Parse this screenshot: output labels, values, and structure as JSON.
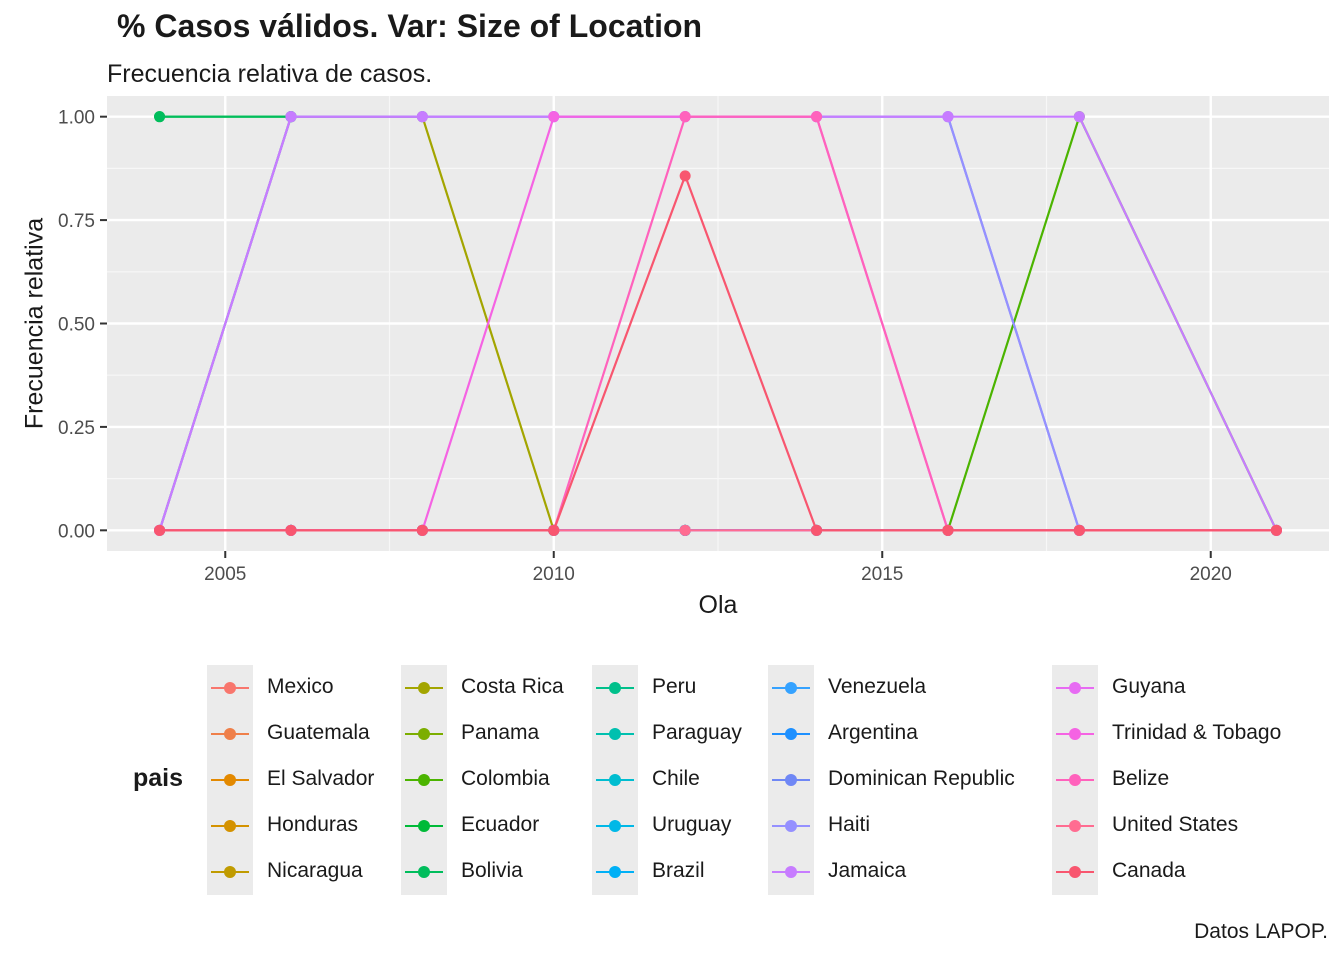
{
  "title": "% Casos válidos. Var: Size of Location",
  "subtitle": "Frecuencia relativa de casos.",
  "caption": "Datos LAPOP.",
  "chart_data": {
    "type": "line",
    "xlabel": "Ola",
    "ylabel": "Frecuencia relativa",
    "xlim": [
      2003.2,
      2021.8
    ],
    "ylim": [
      -0.05,
      1.05
    ],
    "x_ticks": [
      "2005",
      "2010",
      "2015",
      "2020"
    ],
    "y_ticks": [
      "0.00",
      "0.25",
      "0.50",
      "0.75",
      "1.00"
    ],
    "grid": true,
    "legend_title": "pais",
    "legend_position": "bottom",
    "series": [
      {
        "name": "Mexico",
        "color": "#F8766D",
        "x": [
          2004,
          2006,
          2008,
          2010,
          2012,
          2014,
          2016,
          2018,
          2021
        ],
        "y": [
          0,
          0,
          0,
          0,
          0,
          0,
          0,
          0,
          0
        ]
      },
      {
        "name": "Guatemala",
        "color": "#EF7F49",
        "x": [
          2004,
          2006,
          2008,
          2010,
          2012,
          2014,
          2016,
          2018,
          2021
        ],
        "y": [
          0,
          0,
          0,
          0,
          0,
          0,
          0,
          0,
          0
        ]
      },
      {
        "name": "El Salvador",
        "color": "#E38900",
        "x": [
          2004,
          2006,
          2008,
          2010,
          2012,
          2014,
          2016,
          2018,
          2021
        ],
        "y": [
          0,
          0,
          0,
          0,
          0,
          0,
          0,
          0,
          0
        ]
      },
      {
        "name": "Honduras",
        "color": "#D49200",
        "x": [
          2004,
          2006,
          2008,
          2010,
          2012,
          2014,
          2016,
          2018,
          2021
        ],
        "y": [
          0,
          0,
          0,
          0,
          0,
          0,
          0,
          0,
          0
        ]
      },
      {
        "name": "Nicaragua",
        "color": "#C09B00",
        "x": [
          2004,
          2006,
          2008,
          2010,
          2012,
          2014,
          2016,
          2018,
          2021
        ],
        "y": [
          0,
          0,
          0,
          0,
          0,
          0,
          0,
          0,
          0
        ]
      },
      {
        "name": "Costa Rica",
        "color": "#A3A500",
        "x": [
          2004,
          2006,
          2008,
          2010,
          2012,
          2014,
          2016,
          2018,
          2021
        ],
        "y": [
          0,
          1,
          1,
          0,
          0,
          0,
          0,
          0,
          0
        ]
      },
      {
        "name": "Panama",
        "color": "#7CAE00",
        "x": [
          2004,
          2006,
          2008,
          2010,
          2012,
          2014,
          2016,
          2018,
          2021
        ],
        "y": [
          0,
          0,
          0,
          0,
          0,
          0,
          0,
          0,
          0
        ]
      },
      {
        "name": "Colombia",
        "color": "#4BB400",
        "x": [
          2004,
          2006,
          2008,
          2010,
          2012,
          2014,
          2016,
          2018,
          2021
        ],
        "y": [
          0,
          0,
          0,
          0,
          0,
          0,
          0,
          1,
          0
        ]
      },
      {
        "name": "Ecuador",
        "color": "#00BA38",
        "x": [
          2004,
          2006
        ],
        "y": [
          1,
          1
        ]
      },
      {
        "name": "Bolivia",
        "color": "#00BD5C",
        "x": [
          2004,
          2006
        ],
        "y": [
          1,
          1
        ]
      },
      {
        "name": "Peru",
        "color": "#00C08B",
        "x": [
          2004,
          2006,
          2008,
          2010,
          2012,
          2014,
          2016,
          2018,
          2021
        ],
        "y": [
          0,
          0,
          0,
          0,
          0,
          0,
          0,
          0,
          0
        ]
      },
      {
        "name": "Paraguay",
        "color": "#00C0AF",
        "x": [
          2004,
          2006,
          2008,
          2010,
          2012,
          2014,
          2016,
          2018,
          2021
        ],
        "y": [
          0,
          0,
          0,
          0,
          0,
          0,
          0,
          0,
          0
        ]
      },
      {
        "name": "Chile",
        "color": "#00BDD0",
        "x": [
          2004,
          2006,
          2008,
          2010,
          2012,
          2014,
          2016,
          2018,
          2021
        ],
        "y": [
          0,
          0,
          0,
          0,
          0,
          0,
          0,
          0,
          0
        ]
      },
      {
        "name": "Uruguay",
        "color": "#00B8E7",
        "x": [
          2004,
          2006,
          2008,
          2010,
          2012,
          2014,
          2016,
          2018,
          2021
        ],
        "y": [
          0,
          0,
          0,
          0,
          0,
          0,
          0,
          0,
          0
        ]
      },
      {
        "name": "Brazil",
        "color": "#00B0F6",
        "x": [
          2004,
          2006,
          2008,
          2010,
          2012,
          2014,
          2016,
          2018,
          2021
        ],
        "y": [
          0,
          0,
          0,
          0,
          0,
          0,
          0,
          0,
          0
        ]
      },
      {
        "name": "Venezuela",
        "color": "#35A2FF",
        "x": [
          2004,
          2006,
          2008,
          2010,
          2012,
          2014,
          2016,
          2018,
          2021
        ],
        "y": [
          0,
          0,
          0,
          0,
          0,
          0,
          0,
          0,
          0
        ]
      },
      {
        "name": "Argentina",
        "color": "#1E90FF",
        "x": [
          2004,
          2006,
          2008,
          2010,
          2012,
          2014,
          2016,
          2018,
          2021
        ],
        "y": [
          0,
          0,
          0,
          0,
          0,
          0,
          0,
          0,
          0
        ]
      },
      {
        "name": "Dominican Republic",
        "color": "#6F87F5",
        "x": [
          2004,
          2006,
          2008,
          2010,
          2012,
          2014,
          2016,
          2018,
          2021
        ],
        "y": [
          0,
          1,
          1,
          1,
          1,
          1,
          1,
          0,
          0
        ]
      },
      {
        "name": "Haiti",
        "color": "#9590FF",
        "x": [
          2004,
          2006,
          2008,
          2010,
          2012,
          2014,
          2016,
          2018,
          2021
        ],
        "y": [
          0,
          1,
          1,
          1,
          1,
          1,
          1,
          0,
          0
        ]
      },
      {
        "name": "Jamaica",
        "color": "#C77CFF",
        "x": [
          2004,
          2006,
          2008,
          2010,
          2012,
          2014,
          2016,
          2018,
          2021
        ],
        "y": [
          0,
          1,
          1,
          1,
          1,
          1,
          1,
          1,
          0
        ]
      },
      {
        "name": "Guyana",
        "color": "#E76BF3",
        "x": [
          2004,
          2006,
          2008,
          2010,
          2012,
          2014,
          2016,
          2018,
          2021
        ],
        "y": [
          0,
          0,
          0,
          0,
          0,
          0,
          0,
          0,
          0
        ]
      },
      {
        "name": "Trinidad & Tobago",
        "color": "#F563E3",
        "x": [
          2004,
          2006,
          2008,
          2010,
          2012,
          2014,
          2016,
          2018,
          2021
        ],
        "y": [
          0,
          0,
          0,
          1,
          1,
          1,
          0,
          0,
          0
        ]
      },
      {
        "name": "Belize",
        "color": "#FF62BC",
        "x": [
          2004,
          2006,
          2008,
          2010,
          2012,
          2014,
          2016,
          2018,
          2021
        ],
        "y": [
          0,
          0,
          0,
          0,
          1,
          1,
          0,
          0,
          0
        ]
      },
      {
        "name": "United States",
        "color": "#FF6C91",
        "x": [
          2004,
          2006,
          2008,
          2010,
          2012,
          2014,
          2016,
          2018,
          2021
        ],
        "y": [
          0,
          0,
          0,
          0,
          0,
          0,
          0,
          0,
          0
        ]
      },
      {
        "name": "Canada",
        "color": "#F8566F",
        "x": [
          2004,
          2006,
          2008,
          2010,
          2012,
          2014,
          2016,
          2018,
          2021
        ],
        "y": [
          0,
          0,
          0,
          0,
          0.857,
          0,
          0,
          0,
          0
        ]
      }
    ]
  }
}
